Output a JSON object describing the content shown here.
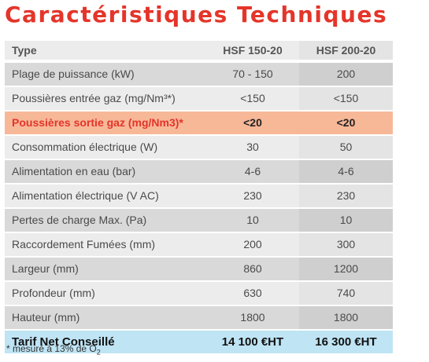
{
  "title": "Caractéristiques Techniques",
  "header": {
    "label": "Type",
    "col1": "HSF 150-20",
    "col2": "HSF 200-20"
  },
  "rows": [
    {
      "label": "Plage de puissance (kW)",
      "v1": "70 - 150",
      "v2": "200"
    },
    {
      "label": "Poussières entrée gaz (mg/Nm³*)",
      "v1": "<150",
      "v2": "<150"
    },
    {
      "label": "Poussières sortie gaz (mg/Nm3)*",
      "v1": "<20",
      "v2": "<20"
    },
    {
      "label": "Consommation électrique (W)",
      "v1": "30",
      "v2": "50"
    },
    {
      "label": "Alimentation en eau (bar)",
      "v1": "4-6",
      "v2": "4-6"
    },
    {
      "label": "Alimentation électrique (V AC)",
      "v1": "230",
      "v2": "230"
    },
    {
      "label": "Pertes de charge Max. (Pa)",
      "v1": "10",
      "v2": "10"
    },
    {
      "label": "Raccordement Fumées (mm)",
      "v1": "200",
      "v2": "300"
    },
    {
      "label": "Largeur (mm)",
      "v1": "860",
      "v2": "1200"
    },
    {
      "label": "Profondeur (mm)",
      "v1": "630",
      "v2": "740"
    },
    {
      "label": "Hauteur (mm)",
      "v1": "1800",
      "v2": "1800"
    }
  ],
  "price": {
    "label": "Tarif Net Conseillé",
    "v1": "14 100 €HT",
    "v2": "16 300 €HT"
  },
  "footnote": {
    "text": "* mesuré à 13% de O",
    "subscript": "2"
  },
  "colors": {
    "title": "#e4352a",
    "highlight_row": "#f7b898",
    "price_row": "#bfe4f4"
  }
}
